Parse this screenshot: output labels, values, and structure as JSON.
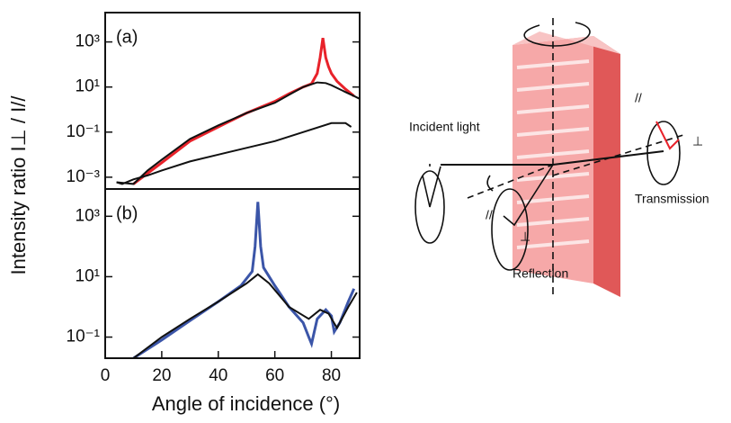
{
  "ylabel": "Intensity ratio I⊥ / I//",
  "chart_data": [
    {
      "type": "line",
      "label": "(a)",
      "log_y": true,
      "xlim": [
        0,
        90
      ],
      "ylim": [
        0.0003,
        20000
      ],
      "yticks": [
        {
          "value": 0.001,
          "label": "10⁻³"
        },
        {
          "value": 0.1,
          "label": "10⁻¹"
        },
        {
          "value": 10,
          "label": "10¹"
        },
        {
          "value": 1000,
          "label": "10³"
        }
      ],
      "series": [
        {
          "color": "#e8222a",
          "x": [
            10,
            15,
            20,
            30,
            40,
            50,
            60,
            65,
            70,
            73,
            75,
            76,
            77,
            78,
            79,
            80,
            82,
            85,
            88
          ],
          "values": [
            0.0005,
            0.0015,
            0.0044,
            0.04,
            0.17,
            0.7,
            2.3,
            5,
            10,
            14,
            40,
            200,
            1500,
            200,
            80,
            40,
            18,
            8,
            4
          ]
        },
        {
          "color": "#111111",
          "x": [
            4,
            10,
            15,
            20,
            30,
            40,
            50,
            60,
            65,
            70,
            75,
            78,
            80,
            85,
            88,
            90
          ],
          "values": [
            0.0006,
            0.0005,
            0.002,
            0.006,
            0.05,
            0.2,
            0.7,
            2,
            4.5,
            10,
            16,
            15,
            12,
            6,
            4,
            3
          ]
        },
        {
          "color": "#111111",
          "x": [
            4,
            6,
            10,
            15,
            20,
            30,
            40,
            50,
            60,
            70,
            80,
            85,
            87
          ],
          "values": [
            0.0006,
            0.0005,
            0.0008,
            0.0012,
            0.002,
            0.005,
            0.01,
            0.02,
            0.04,
            0.1,
            0.25,
            0.25,
            0.17
          ]
        }
      ]
    },
    {
      "type": "line",
      "label": "(b)",
      "log_y": true,
      "xlabel": "Angle of incidence (°)",
      "xlim": [
        0,
        90
      ],
      "ylim": [
        0.02,
        8000
      ],
      "xticks": [
        0,
        20,
        40,
        60,
        80
      ],
      "yticks": [
        {
          "value": 0.1,
          "label": "10⁻¹"
        },
        {
          "value": 10,
          "label": "10¹"
        },
        {
          "value": 1000,
          "label": "10³"
        }
      ],
      "series": [
        {
          "color": "#3b55a8",
          "x": [
            10,
            15,
            20,
            30,
            40,
            48,
            52,
            53,
            54,
            55,
            56,
            60,
            65,
            70,
            72,
            73,
            75,
            78,
            80,
            81,
            83,
            86,
            88
          ],
          "values": [
            0.02,
            0.04,
            0.08,
            0.35,
            1.5,
            5,
            15,
            100,
            3000,
            100,
            20,
            5,
            1,
            0.3,
            0.1,
            0.06,
            0.4,
            0.8,
            0.5,
            0.15,
            0.3,
            1.5,
            4
          ]
        },
        {
          "color": "#111111",
          "x": [
            10,
            20,
            30,
            40,
            50,
            54,
            58,
            65,
            72,
            76,
            79,
            82,
            86,
            89
          ],
          "values": [
            0.02,
            0.1,
            0.4,
            1.5,
            6,
            12,
            6,
            1,
            0.4,
            0.8,
            0.6,
            0.2,
            1,
            3
          ]
        }
      ]
    }
  ],
  "diagram": {
    "incident": "Incident light",
    "transmission": "Transmission",
    "reflection": "Reflection",
    "parallel_t": "//",
    "perp_t": "⊥",
    "parallel_r": "//",
    "perp_r": "⊥"
  }
}
